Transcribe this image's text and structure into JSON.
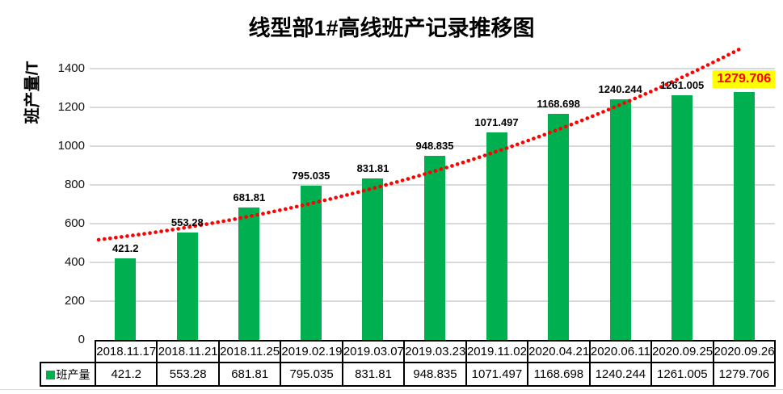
{
  "title": "线型部1#高线班产记录推移图",
  "y_axis_label": "班产量/T",
  "legend_label": "班产量",
  "colors": {
    "bar": "#00B050",
    "trend": "#FF0000",
    "gridline": "#D9D9D9",
    "highlight_bg": "#FFFF00",
    "highlight_text": "#FF0000",
    "table_border": "#000000"
  },
  "chart_data": {
    "type": "bar",
    "title": "线型部1#高线班产记录推移图",
    "xlabel": "",
    "ylabel": "班产量/T",
    "categories": [
      "2018.11.17",
      "2018.11.21",
      "2018.11.25",
      "2019.02.19",
      "2019.03.07",
      "2019.03.23",
      "2019.11.02",
      "2020.04.21",
      "2020.06.11",
      "2020.09.25",
      "2020.09.26"
    ],
    "series": [
      {
        "name": "班产量",
        "values": [
          421.2,
          553.28,
          681.81,
          795.035,
          831.81,
          948.835,
          1071.497,
          1168.698,
          1240.244,
          1261.005,
          1279.706
        ]
      }
    ],
    "data_labels": [
      "421.2",
      "553.28",
      "681.81",
      "795.035",
      "831.81",
      "948.835",
      "1071.497",
      "1168.698",
      "1240.244",
      "1261.005",
      "1279.706"
    ],
    "highlight_last_label": true,
    "ylim": [
      0,
      1400
    ],
    "yticks": [
      0,
      200,
      400,
      600,
      800,
      1000,
      1200,
      1400
    ],
    "grid": true,
    "legend_position": "table-left",
    "trendline": {
      "style": "dotted",
      "color": "#FF0000",
      "x_start_frac": 0.006,
      "start_value": 517,
      "x_mid_frac": 0.5,
      "mid_value": 871,
      "x_end_frac": 0.95,
      "end_value": 1504
    }
  }
}
